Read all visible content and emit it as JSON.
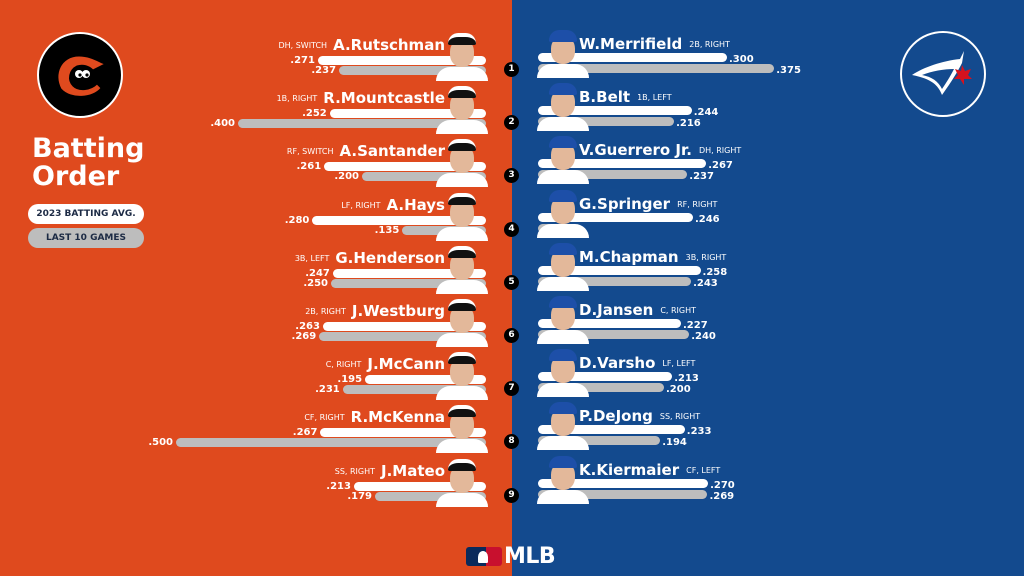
{
  "header": {
    "title_line1": "Batting",
    "title_line2": "Order",
    "legend_primary": "2023 BATTING AVG.",
    "legend_secondary": "LAST 10 GAMES"
  },
  "teams": {
    "left": {
      "name": "Baltimore Orioles",
      "logo_icon": "orioles-bird-logo",
      "color": "#df4a1e"
    },
    "right": {
      "name": "Toronto Blue Jays",
      "logo_icon": "blue-jays-logo",
      "color": "#134a8e"
    }
  },
  "footer": {
    "brand": "MLB"
  },
  "chart_data": {
    "type": "bar",
    "title": "Batting Order",
    "series_names": [
      "2023 BATTING AVG.",
      "LAST 10 GAMES"
    ],
    "series_colors": [
      "#ffffff",
      "#bdbdbd"
    ],
    "orioles": [
      {
        "order": "1",
        "name": "A.Rutschman",
        "pos": "DH, SWITCH",
        "avg": ".271",
        "last10": ".237",
        "avg_v": 0.271,
        "last10_v": 0.237
      },
      {
        "order": "2",
        "name": "R.Mountcastle",
        "pos": "1B, RIGHT",
        "avg": ".252",
        "last10": ".400",
        "avg_v": 0.252,
        "last10_v": 0.4
      },
      {
        "order": "3",
        "name": "A.Santander",
        "pos": "RF, SWITCH",
        "avg": ".261",
        "last10": ".200",
        "avg_v": 0.261,
        "last10_v": 0.2
      },
      {
        "order": "4",
        "name": "A.Hays",
        "pos": "LF, RIGHT",
        "avg": ".280",
        "last10": ".135",
        "avg_v": 0.28,
        "last10_v": 0.135
      },
      {
        "order": "5",
        "name": "G.Henderson",
        "pos": "3B, LEFT",
        "avg": ".247",
        "last10": ".250",
        "avg_v": 0.247,
        "last10_v": 0.25
      },
      {
        "order": "6",
        "name": "J.Westburg",
        "pos": "2B, RIGHT",
        "avg": ".263",
        "last10": ".269",
        "avg_v": 0.263,
        "last10_v": 0.269
      },
      {
        "order": "7",
        "name": "J.McCann",
        "pos": "C, RIGHT",
        "avg": ".195",
        "last10": ".231",
        "avg_v": 0.195,
        "last10_v": 0.231
      },
      {
        "order": "8",
        "name": "R.McKenna",
        "pos": "CF, RIGHT",
        "avg": ".267",
        "last10": ".500",
        "avg_v": 0.267,
        "last10_v": 0.5
      },
      {
        "order": "9",
        "name": "J.Mateo",
        "pos": "SS, RIGHT",
        "avg": ".213",
        "last10": ".179",
        "avg_v": 0.213,
        "last10_v": 0.179
      }
    ],
    "blue_jays": [
      {
        "order": "1",
        "name": "W.Merrifield",
        "pos": "2B, RIGHT",
        "avg": ".300",
        "last10": ".375",
        "avg_v": 0.3,
        "last10_v": 0.375
      },
      {
        "order": "2",
        "name": "B.Belt",
        "pos": "1B, LEFT",
        "avg": ".244",
        "last10": ".216",
        "avg_v": 0.244,
        "last10_v": 0.216
      },
      {
        "order": "3",
        "name": "V.Guerrero Jr.",
        "pos": "DH, RIGHT",
        "avg": ".267",
        "last10": ".237",
        "avg_v": 0.267,
        "last10_v": 0.237
      },
      {
        "order": "4",
        "name": "G.Springer",
        "pos": "RF, RIGHT",
        "avg": ".246",
        "last10": ".026",
        "avg_v": 0.246,
        "last10_v": 0.026
      },
      {
        "order": "5",
        "name": "M.Chapman",
        "pos": "3B, RIGHT",
        "avg": ".258",
        "last10": ".243",
        "avg_v": 0.258,
        "last10_v": 0.243
      },
      {
        "order": "6",
        "name": "D.Jansen",
        "pos": "C, RIGHT",
        "avg": ".227",
        "last10": ".240",
        "avg_v": 0.227,
        "last10_v": 0.24
      },
      {
        "order": "7",
        "name": "D.Varsho",
        "pos": "LF, LEFT",
        "avg": ".213",
        "last10": ".200",
        "avg_v": 0.213,
        "last10_v": 0.2
      },
      {
        "order": "8",
        "name": "P.DeJong",
        "pos": "SS, RIGHT",
        "avg": ".233",
        "last10": ".194",
        "avg_v": 0.233,
        "last10_v": 0.194
      },
      {
        "order": "9",
        "name": "K.Kiermaier",
        "pos": "CF, LEFT",
        "avg": ".270",
        "last10": ".269",
        "avg_v": 0.27,
        "last10_v": 0.269
      }
    ]
  }
}
